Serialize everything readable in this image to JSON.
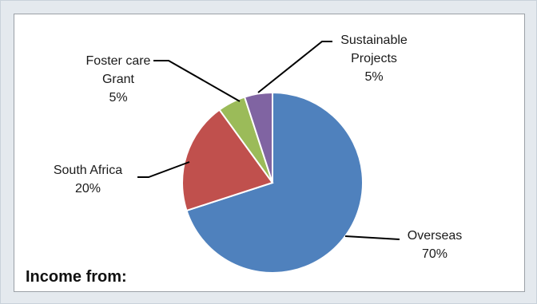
{
  "chart_data": {
    "type": "pie",
    "title": "Income from:",
    "slices": [
      {
        "name": "Overseas",
        "value": 70,
        "label_lines": [
          "Overseas",
          "70%"
        ],
        "color": "#4f81bd"
      },
      {
        "name": "South Africa",
        "value": 20,
        "label_lines": [
          "South Africa",
          "20%"
        ],
        "color": "#c0504d"
      },
      {
        "name": "Foster care Grant",
        "value": 5,
        "label_lines": [
          "Foster care",
          "Grant",
          "5%"
        ],
        "color": "#9bbb59"
      },
      {
        "name": "Sustainable Projects",
        "value": 5,
        "label_lines": [
          "Sustainable",
          "Projects",
          "5%"
        ],
        "color": "#8064a2"
      }
    ],
    "legend": "none",
    "labels": "outside-with-leader-lines"
  }
}
